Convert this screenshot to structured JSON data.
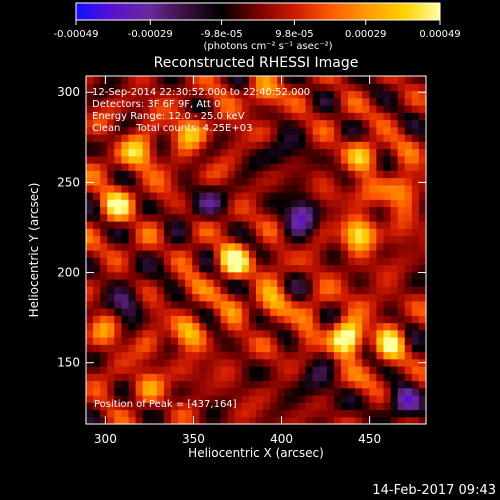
{
  "colorbar": {
    "ticks": [
      "-0.00049",
      "-0.00029",
      "-9.8e-05",
      "9.8e-05",
      "0.00029",
      "0.00049"
    ],
    "units": "(photons cm⁻² s⁻¹ asec⁻²)",
    "colors": [
      "#1010ff",
      "#5a10d0",
      "#6a2a9a",
      "#3a1040",
      "#000000",
      "#7a0000",
      "#cc1a00",
      "#ff5a00",
      "#ff9a00",
      "#ffd000",
      "#ffffa0"
    ]
  },
  "plot": {
    "title": "Reconstructed RHESSI Image",
    "info_lines": [
      "12-Sep-2014 22:30:52.000 to 22:40:52.000",
      "Detectors: 3F 6F 9F, Att 0",
      "Energy Range: 12.0 - 25.0 keV",
      "Clean     Total counts: 4.25E+03"
    ],
    "peak_text": "Position of Peak = [437,164]"
  },
  "footer": {
    "timestamp": "14-Feb-2017 09:43"
  },
  "chart_data": {
    "type": "heatmap",
    "title": "Reconstructed RHESSI Image",
    "xlabel": "Heliocentric X (arcsec)",
    "ylabel": "Heliocentric Y (arcsec)",
    "xlim": [
      289,
      482
    ],
    "ylim": [
      116,
      309
    ],
    "xticks": [
      300,
      350,
      400,
      450
    ],
    "yticks": [
      150,
      200,
      250,
      300
    ],
    "zlim": [
      -0.00049,
      0.00049
    ],
    "peak": [
      437,
      164
    ],
    "sources": [
      {
        "x": 437,
        "y": 164,
        "value": 0.00049
      },
      {
        "x": 372,
        "y": 207,
        "value": 0.0004
      },
      {
        "x": 444,
        "y": 222,
        "value": 0.00036
      },
      {
        "x": 306,
        "y": 237,
        "value": 0.0003
      },
      {
        "x": 318,
        "y": 268,
        "value": 0.00028
      },
      {
        "x": 348,
        "y": 168,
        "value": 0.00027
      },
      {
        "x": 396,
        "y": 181,
        "value": 0.00024
      },
      {
        "x": 349,
        "y": 278,
        "value": 0.00024
      },
      {
        "x": 446,
        "y": 265,
        "value": 0.00026
      },
      {
        "x": 324,
        "y": 136,
        "value": 0.0002
      },
      {
        "x": 390,
        "y": 299,
        "value": 0.00022
      },
      {
        "x": 471,
        "y": 247,
        "value": 0.00024
      },
      {
        "x": 463,
        "y": 160,
        "value": 0.00026
      },
      {
        "x": 300,
        "y": 168,
        "value": 0.00018
      }
    ],
    "sinks": [
      {
        "x": 412,
        "y": 232,
        "value": -0.00035
      },
      {
        "x": 312,
        "y": 184,
        "value": -0.00025
      },
      {
        "x": 470,
        "y": 128,
        "value": -0.0003
      },
      {
        "x": 420,
        "y": 140,
        "value": -0.00022
      },
      {
        "x": 358,
        "y": 236,
        "value": -0.0002
      },
      {
        "x": 400,
        "y": 268,
        "value": -0.0002
      }
    ]
  }
}
